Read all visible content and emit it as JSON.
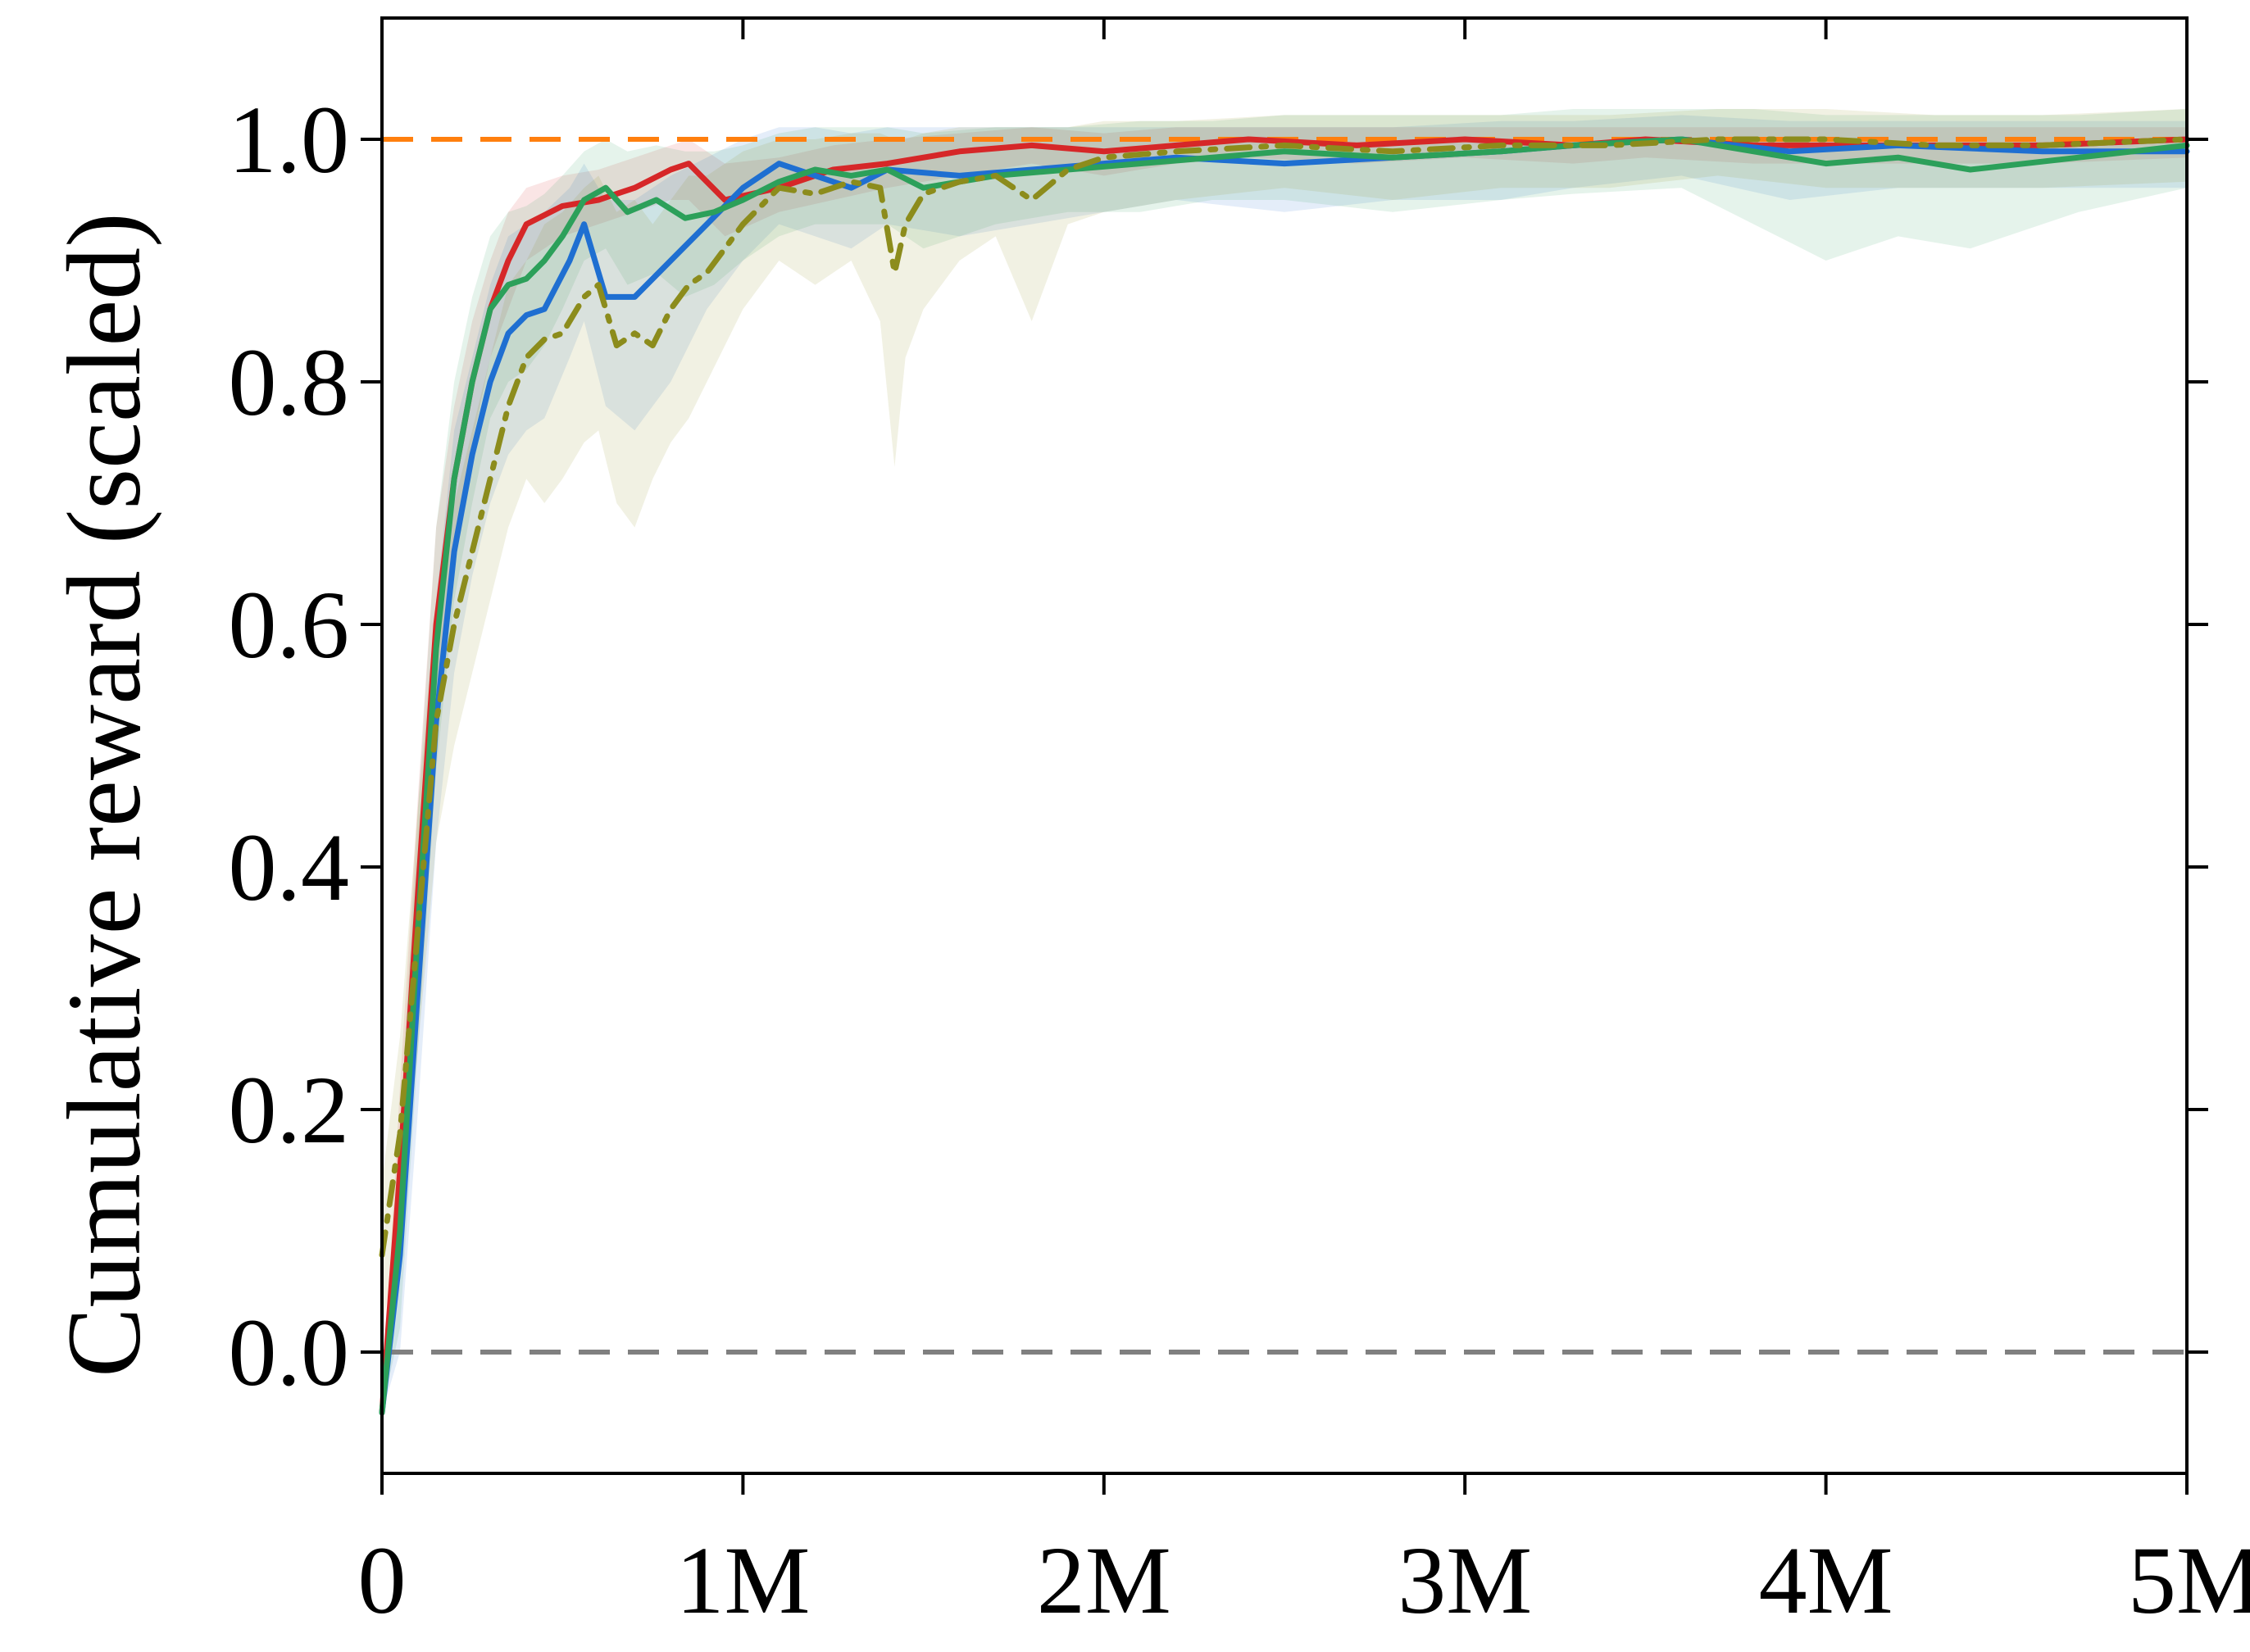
{
  "chart_data": {
    "type": "line",
    "title": "",
    "xlabel": "",
    "ylabel": "Cumulative reward (scaled)",
    "xlim": [
      0,
      5000000
    ],
    "ylim": [
      -0.1,
      1.1
    ],
    "x_ticks": [
      {
        "value": 0,
        "label": "0"
      },
      {
        "value": 1000000,
        "label": "1M"
      },
      {
        "value": 2000000,
        "label": "2M"
      },
      {
        "value": 3000000,
        "label": "3M"
      },
      {
        "value": 4000000,
        "label": "4M"
      },
      {
        "value": 5000000,
        "label": "5M"
      }
    ],
    "y_ticks": [
      {
        "value": 0.0,
        "label": "0.0"
      },
      {
        "value": 0.2,
        "label": "0.2"
      },
      {
        "value": 0.4,
        "label": "0.4"
      },
      {
        "value": 0.6,
        "label": "0.6"
      },
      {
        "value": 0.8,
        "label": "0.8"
      },
      {
        "value": 1.0,
        "label": "1.0"
      }
    ],
    "grid": false,
    "legend": "none",
    "reference_lines": [
      {
        "y": 1.0,
        "color": "#ff7f0e",
        "style": "dashed"
      },
      {
        "y": 0.0,
        "color": "#808080",
        "style": "dashed"
      }
    ],
    "series": [
      {
        "color": "#d62728",
        "style": "solid",
        "x": [
          0,
          50000,
          100000,
          150000,
          200000,
          250000,
          300000,
          350000,
          400000,
          500000,
          600000,
          700000,
          800000,
          850000,
          950000,
          1100000,
          1250000,
          1400000,
          1600000,
          1800000,
          2000000,
          2200000,
          2400000,
          2700000,
          3000000,
          3300000,
          3500000,
          3800000,
          4200000,
          4600000,
          5000000
        ],
        "y": [
          -0.05,
          0.15,
          0.38,
          0.6,
          0.72,
          0.8,
          0.86,
          0.9,
          0.93,
          0.945,
          0.95,
          0.96,
          0.975,
          0.98,
          0.95,
          0.96,
          0.975,
          0.98,
          0.99,
          0.995,
          0.99,
          0.995,
          1.0,
          0.995,
          1.0,
          0.995,
          1.0,
          0.995,
          0.995,
          0.995,
          1.0
        ],
        "lower": [
          -0.05,
          0.08,
          0.3,
          0.52,
          0.66,
          0.75,
          0.82,
          0.86,
          0.9,
          0.92,
          0.93,
          0.94,
          0.95,
          0.95,
          0.92,
          0.94,
          0.95,
          0.96,
          0.97,
          0.98,
          0.97,
          0.98,
          0.985,
          0.98,
          0.985,
          0.98,
          0.985,
          0.98,
          0.98,
          0.98,
          0.985
        ],
        "upper": [
          -0.05,
          0.22,
          0.46,
          0.68,
          0.78,
          0.85,
          0.9,
          0.94,
          0.96,
          0.97,
          0.975,
          0.985,
          0.995,
          1.0,
          0.98,
          0.985,
          0.995,
          1.0,
          1.005,
          1.01,
          1.005,
          1.01,
          1.01,
          1.01,
          1.01,
          1.01,
          1.01,
          1.01,
          1.01,
          1.01,
          1.01
        ]
      },
      {
        "color": "#1f6fd1",
        "style": "solid",
        "x": [
          0,
          50000,
          100000,
          150000,
          200000,
          250000,
          300000,
          350000,
          400000,
          450000,
          520000,
          560000,
          620000,
          700000,
          800000,
          900000,
          1000000,
          1100000,
          1200000,
          1300000,
          1400000,
          1600000,
          1800000,
          2000000,
          2200000,
          2500000,
          2800000,
          3100000,
          3300000,
          3600000,
          3900000,
          4200000,
          4600000,
          5000000
        ],
        "y": [
          -0.05,
          0.08,
          0.3,
          0.52,
          0.66,
          0.74,
          0.8,
          0.84,
          0.855,
          0.86,
          0.9,
          0.93,
          0.87,
          0.87,
          0.9,
          0.93,
          0.96,
          0.98,
          0.97,
          0.96,
          0.975,
          0.97,
          0.975,
          0.98,
          0.985,
          0.98,
          0.985,
          0.99,
          0.995,
          1.0,
          0.99,
          0.995,
          0.99,
          0.99
        ],
        "lower": [
          -0.05,
          0.0,
          0.2,
          0.42,
          0.56,
          0.64,
          0.7,
          0.74,
          0.76,
          0.77,
          0.82,
          0.85,
          0.78,
          0.76,
          0.8,
          0.86,
          0.9,
          0.93,
          0.92,
          0.91,
          0.93,
          0.92,
          0.93,
          0.94,
          0.95,
          0.94,
          0.95,
          0.95,
          0.96,
          0.97,
          0.95,
          0.96,
          0.96,
          0.96
        ],
        "upper": [
          -0.05,
          0.16,
          0.4,
          0.62,
          0.76,
          0.82,
          0.88,
          0.92,
          0.93,
          0.94,
          0.96,
          0.98,
          0.95,
          0.95,
          0.97,
          0.985,
          1.0,
          1.01,
          1.01,
          1.005,
          1.01,
          1.01,
          1.01,
          1.01,
          1.01,
          1.01,
          1.01,
          1.015,
          1.015,
          1.02,
          1.015,
          1.015,
          1.015,
          1.015
        ]
      },
      {
        "color": "#2ca05a",
        "style": "solid",
        "x": [
          0,
          50000,
          100000,
          150000,
          200000,
          250000,
          300000,
          350000,
          400000,
          450000,
          500000,
          560000,
          620000,
          680000,
          760000,
          840000,
          920000,
          1000000,
          1100000,
          1200000,
          1300000,
          1400000,
          1500000,
          1700000,
          1900000,
          2100000,
          2300000,
          2500000,
          2800000,
          3100000,
          3300000,
          3600000,
          3800000,
          4000000,
          4200000,
          4400000,
          4700000,
          5000000
        ],
        "y": [
          -0.05,
          0.1,
          0.35,
          0.58,
          0.72,
          0.8,
          0.86,
          0.88,
          0.885,
          0.9,
          0.92,
          0.95,
          0.96,
          0.94,
          0.95,
          0.935,
          0.94,
          0.95,
          0.965,
          0.975,
          0.97,
          0.975,
          0.96,
          0.97,
          0.975,
          0.98,
          0.985,
          0.99,
          0.985,
          0.99,
          0.995,
          1.0,
          0.99,
          0.98,
          0.985,
          0.975,
          0.985,
          0.995
        ],
        "lower": [
          -0.05,
          0.02,
          0.25,
          0.48,
          0.62,
          0.7,
          0.77,
          0.8,
          0.81,
          0.83,
          0.86,
          0.9,
          0.91,
          0.88,
          0.89,
          0.87,
          0.88,
          0.9,
          0.92,
          0.93,
          0.93,
          0.93,
          0.91,
          0.93,
          0.94,
          0.94,
          0.95,
          0.95,
          0.94,
          0.95,
          0.955,
          0.96,
          0.93,
          0.9,
          0.92,
          0.91,
          0.94,
          0.96
        ],
        "upper": [
          -0.05,
          0.18,
          0.45,
          0.68,
          0.8,
          0.87,
          0.92,
          0.94,
          0.945,
          0.955,
          0.97,
          0.99,
          1.0,
          0.99,
          0.995,
          0.99,
          0.99,
          0.995,
          1.005,
          1.01,
          1.01,
          1.01,
          1.005,
          1.01,
          1.01,
          1.015,
          1.015,
          1.02,
          1.02,
          1.02,
          1.025,
          1.025,
          1.025,
          1.02,
          1.02,
          1.02,
          1.02,
          1.025
        ]
      },
      {
        "color": "#8c8c1c",
        "style": "dashdot",
        "x": [
          0,
          50000,
          100000,
          150000,
          200000,
          250000,
          300000,
          350000,
          400000,
          450000,
          500000,
          560000,
          600000,
          650000,
          700000,
          750000,
          800000,
          850000,
          900000,
          950000,
          1000000,
          1100000,
          1200000,
          1300000,
          1380000,
          1420000,
          1450000,
          1500000,
          1600000,
          1700000,
          1800000,
          1900000,
          2000000,
          2200000,
          2500000,
          2800000,
          3100000,
          3400000,
          3700000,
          4000000,
          4300000,
          4600000,
          5000000
        ],
        "y": [
          0.08,
          0.18,
          0.35,
          0.52,
          0.6,
          0.66,
          0.72,
          0.78,
          0.82,
          0.835,
          0.84,
          0.87,
          0.88,
          0.83,
          0.84,
          0.83,
          0.86,
          0.88,
          0.89,
          0.91,
          0.93,
          0.96,
          0.955,
          0.965,
          0.96,
          0.89,
          0.93,
          0.955,
          0.965,
          0.97,
          0.95,
          0.975,
          0.985,
          0.99,
          0.995,
          0.99,
          0.995,
          0.995,
          1.0,
          1.0,
          0.995,
          0.995,
          1.0
        ],
        "lower": [
          0.02,
          0.1,
          0.25,
          0.42,
          0.5,
          0.56,
          0.62,
          0.68,
          0.72,
          0.7,
          0.72,
          0.75,
          0.76,
          0.7,
          0.68,
          0.72,
          0.75,
          0.77,
          0.8,
          0.83,
          0.86,
          0.9,
          0.88,
          0.9,
          0.85,
          0.73,
          0.82,
          0.86,
          0.9,
          0.92,
          0.85,
          0.93,
          0.94,
          0.95,
          0.96,
          0.95,
          0.96,
          0.96,
          0.97,
          0.96,
          0.96,
          0.96,
          0.965
        ],
        "upper": [
          0.14,
          0.26,
          0.45,
          0.62,
          0.7,
          0.76,
          0.82,
          0.88,
          0.9,
          0.93,
          0.94,
          0.96,
          0.97,
          0.94,
          0.95,
          0.93,
          0.95,
          0.97,
          0.97,
          0.98,
          0.99,
          1.0,
          1.0,
          1.005,
          1.005,
          1.0,
          1.0,
          1.005,
          1.01,
          1.01,
          1.01,
          1.01,
          1.015,
          1.015,
          1.02,
          1.02,
          1.02,
          1.02,
          1.025,
          1.025,
          1.02,
          1.02,
          1.025
        ]
      }
    ]
  }
}
